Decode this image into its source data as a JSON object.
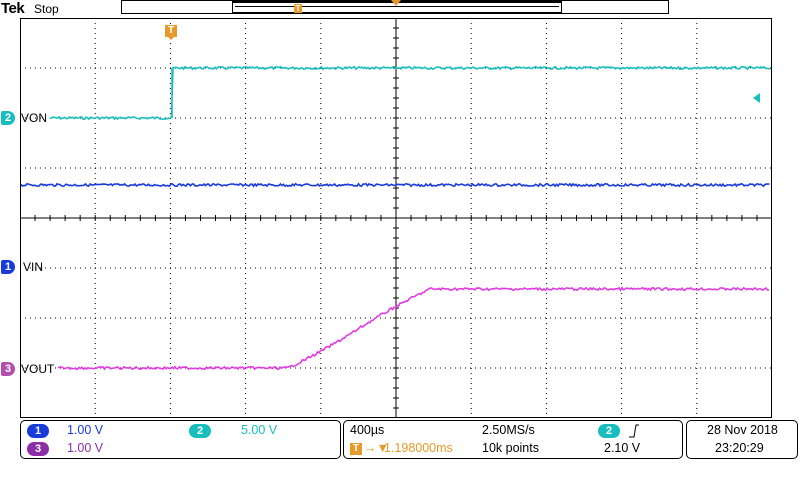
{
  "header": {
    "brand": "Tek",
    "status": "Stop",
    "trigger_marker_label": "T"
  },
  "colors": {
    "ch1": "#1a3bdc",
    "ch2": "#18bebe",
    "ch3": "#e03ce0",
    "ch3_badge": "#b14fb1",
    "trigger": "#e69a2a",
    "graticule": "#000000"
  },
  "channels": [
    {
      "number": "2",
      "label": "VON",
      "color": "#18bebe"
    },
    {
      "number": "1",
      "label": "VIN",
      "color": "#1a3bdc"
    },
    {
      "number": "3",
      "label": "VOUT",
      "color": "#e03ce0"
    }
  ],
  "readout": {
    "ch1": {
      "number": "1",
      "scale": "1.00 V"
    },
    "ch2": {
      "number": "2",
      "scale": "5.00 V"
    },
    "ch3": {
      "number": "3",
      "scale": "1.00 V"
    },
    "timebase": "400µs",
    "sample_rate": "2.50MS/s",
    "trigger_icon": "T",
    "trigger_position": "1.198000ms",
    "record_length": "10k points",
    "trigger_source": "2",
    "trigger_slope_icon": "rising-edge-icon",
    "trigger_level": "2.10 V",
    "date": "28 Nov 2018",
    "time": "23:20:29"
  }
}
